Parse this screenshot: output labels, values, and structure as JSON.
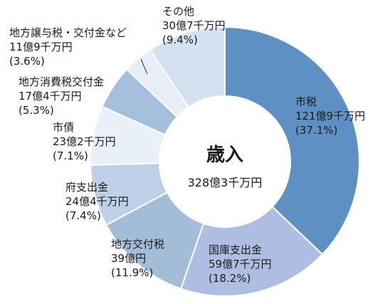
{
  "chart_data": {
    "type": "pie",
    "center_title": "歳入",
    "center_total": "328億3千万円",
    "slices": [
      {
        "name": "市税",
        "amount": "121億9千万円",
        "pct_label": "(37.1%)",
        "value": 37.1,
        "color": "#5f90c4"
      },
      {
        "name": "国庫支出金",
        "amount": "59億7千万円",
        "pct_label": "(18.2%)",
        "value": 18.2,
        "color": "#aebde2"
      },
      {
        "name": "地方交付税",
        "amount": "39億円",
        "pct_label": "(11.9%)",
        "value": 11.9,
        "color": "#a3bdd9"
      },
      {
        "name": "府支出金",
        "amount": "24億4千万円",
        "pct_label": "(7.4%)",
        "value": 7.4,
        "color": "#bed0e7"
      },
      {
        "name": "市債",
        "amount": "23億2千万円",
        "pct_label": "(7.1%)",
        "value": 7.1,
        "color": "#eaf0f8"
      },
      {
        "name": "地方消費税交付金",
        "amount": "17億4千万円",
        "pct_label": "(5.3%)",
        "value": 5.3,
        "color": "#a4bedb"
      },
      {
        "name": "地方譲与税・交付金など",
        "amount": "11億9千万円",
        "pct_label": "(3.6%)",
        "value": 3.6,
        "color": "#e8eef7"
      },
      {
        "name": "その他",
        "amount": "30億7千万円",
        "pct_label": "(9.4%)",
        "value": 9.4,
        "color": "#d5e1f1"
      }
    ]
  }
}
